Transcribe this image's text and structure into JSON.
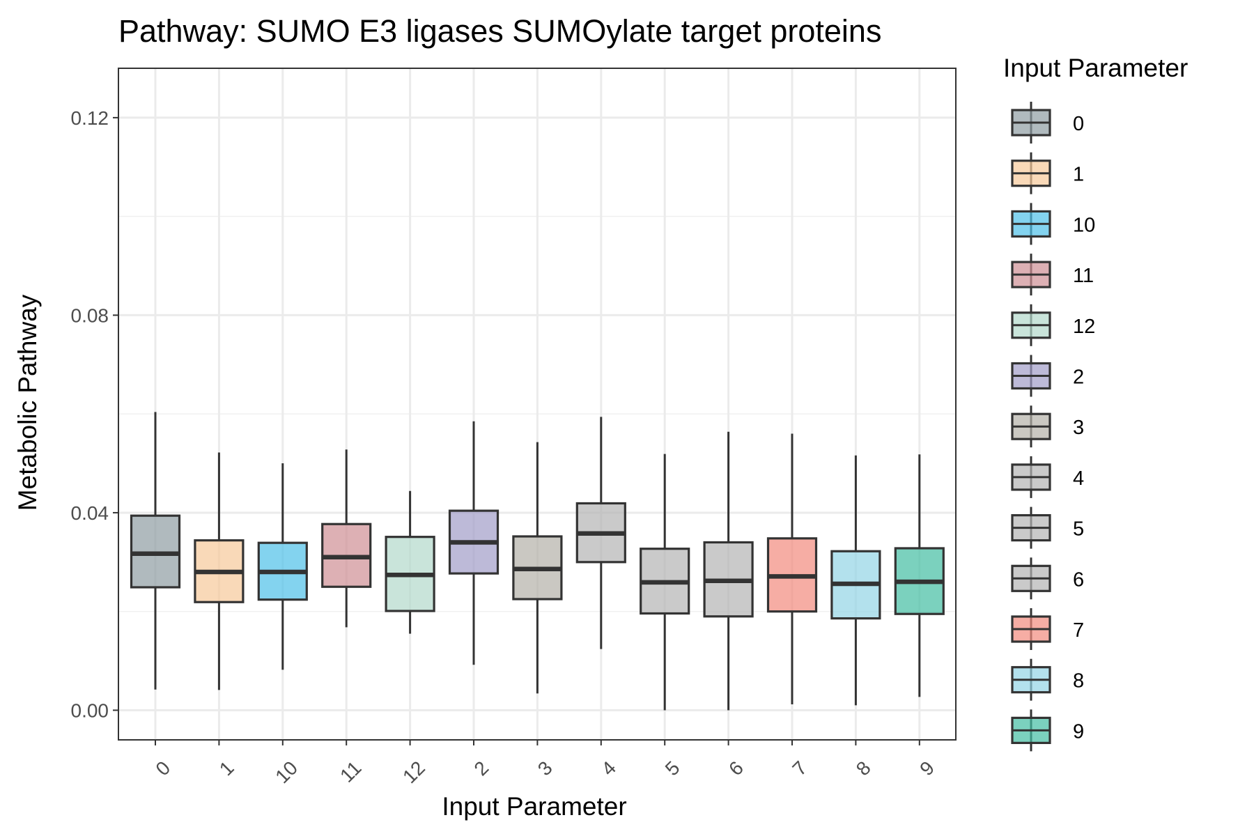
{
  "chart_data": {
    "type": "boxplot",
    "title": "Pathway: SUMO E3 ligases SUMOylate target proteins",
    "xlabel": "Input Parameter",
    "ylabel": "Metabolic Pathway",
    "ylim": [
      -0.006,
      0.13
    ],
    "yticks": [
      0.0,
      0.04,
      0.08,
      0.12
    ],
    "ytick_labels": [
      "0.00",
      "0.04",
      "0.08",
      "0.12"
    ],
    "grid": true,
    "legend": {
      "title": "Input Parameter",
      "placement": "right"
    },
    "categories": [
      "0",
      "1",
      "10",
      "11",
      "12",
      "2",
      "3",
      "4",
      "5",
      "6",
      "7",
      "8",
      "9"
    ],
    "boxes": [
      {
        "category": "0",
        "whisker_low": 0.0042,
        "q1": 0.0249,
        "median": 0.0317,
        "q3": 0.0394,
        "whisker_high": 0.0604,
        "color": "#8e9ca2"
      },
      {
        "category": "1",
        "whisker_low": 0.0041,
        "q1": 0.0219,
        "median": 0.028,
        "q3": 0.0344,
        "whisker_high": 0.0522,
        "color": "#f6c99a"
      },
      {
        "category": "10",
        "whisker_low": 0.0082,
        "q1": 0.0224,
        "median": 0.028,
        "q3": 0.0339,
        "whisker_high": 0.05,
        "color": "#4fc1e8"
      },
      {
        "category": "11",
        "whisker_low": 0.0168,
        "q1": 0.025,
        "median": 0.031,
        "q3": 0.0377,
        "whisker_high": 0.0528,
        "color": "#ce8e94"
      },
      {
        "category": "12",
        "whisker_low": 0.0155,
        "q1": 0.0201,
        "median": 0.0274,
        "q3": 0.0351,
        "whisker_high": 0.0444,
        "color": "#b2d8cb"
      },
      {
        "category": "2",
        "whisker_low": 0.0092,
        "q1": 0.0277,
        "median": 0.034,
        "q3": 0.0404,
        "whisker_high": 0.0585,
        "color": "#a19cc8"
      },
      {
        "category": "3",
        "whisker_low": 0.0034,
        "q1": 0.0225,
        "median": 0.0286,
        "q3": 0.0352,
        "whisker_high": 0.0543,
        "color": "#b4b1a8"
      },
      {
        "category": "4",
        "whisker_low": 0.0124,
        "q1": 0.03,
        "median": 0.0358,
        "q3": 0.0419,
        "whisker_high": 0.0594,
        "color": "#b3b3b3"
      },
      {
        "category": "5",
        "whisker_low": 0.0,
        "q1": 0.0196,
        "median": 0.0259,
        "q3": 0.0327,
        "whisker_high": 0.0519,
        "color": "#b4b4b4"
      },
      {
        "category": "6",
        "whisker_low": 0.0,
        "q1": 0.019,
        "median": 0.0262,
        "q3": 0.034,
        "whisker_high": 0.0564,
        "color": "#b4b4b4"
      },
      {
        "category": "7",
        "whisker_low": 0.0012,
        "q1": 0.02,
        "median": 0.0271,
        "q3": 0.0348,
        "whisker_high": 0.056,
        "color": "#f28a7d"
      },
      {
        "category": "8",
        "whisker_low": 0.001,
        "q1": 0.0186,
        "median": 0.0256,
        "q3": 0.0322,
        "whisker_high": 0.0516,
        "color": "#93d4e6"
      },
      {
        "category": "9",
        "whisker_low": 0.0027,
        "q1": 0.0195,
        "median": 0.026,
        "q3": 0.0328,
        "whisker_high": 0.0518,
        "color": "#43bda3"
      }
    ]
  }
}
